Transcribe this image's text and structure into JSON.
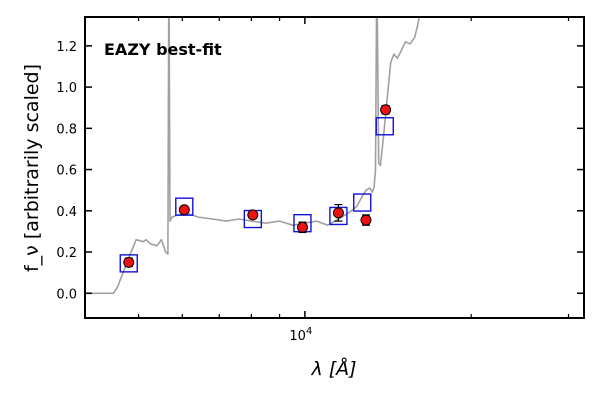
{
  "chart_data": {
    "type": "scatter",
    "annotation": "EAZY best-fit",
    "xlabel": "λ [Å]",
    "ylabel": "f_ν [arbitrarily scaled]",
    "x_scale": "log",
    "xlim": [
      4000,
      32000
    ],
    "ylim": [
      -0.12,
      1.34
    ],
    "y_ticks": [
      0.0,
      0.2,
      0.4,
      0.6,
      0.8,
      1.0,
      1.2
    ],
    "y_tick_labels": [
      "0.0",
      "0.2",
      "0.4",
      "0.6",
      "0.8",
      "1.0",
      "1.2"
    ],
    "x_major_ticks": [
      10000
    ],
    "x_tick_labels": [
      "10^4"
    ],
    "x_minor_ticks": [
      5000,
      6000,
      7000,
      8000,
      9000,
      20000,
      30000
    ],
    "grid": false,
    "colors": {
      "model": "#a0a0a0",
      "observed_fill": "#ee1111",
      "observed_edge": "#000000",
      "model_photometry": "#1111dd",
      "annotation": "#ee1111"
    },
    "series": [
      {
        "kind": "observed",
        "x": [
          4800,
          6050,
          8050,
          9900,
          11500,
          12900,
          14000
        ],
        "y": [
          0.15,
          0.405,
          0.38,
          0.32,
          0.39,
          0.355,
          0.89
        ],
        "yerr": [
          0.02,
          0.015,
          0.015,
          0.025,
          0.04,
          0.025,
          0.02
        ]
      },
      {
        "kind": "model_photometry",
        "x": [
          4800,
          6050,
          8050,
          9900,
          11500,
          12700,
          13950
        ],
        "y": [
          0.145,
          0.42,
          0.36,
          0.34,
          0.375,
          0.44,
          0.81
        ]
      },
      {
        "kind": "model_sed",
        "x": [
          4000,
          4500,
          4580,
          4750,
          4950,
          5100,
          5160,
          5250,
          5400,
          5500,
          5600,
          5650,
          5670,
          5680,
          5700,
          5750,
          5900,
          6100,
          6400,
          6800,
          7200,
          7600,
          8000,
          8500,
          9000,
          9500,
          10000,
          10500,
          11000,
          11500,
          12000,
          12400,
          12700,
          12900,
          13100,
          13250,
          13350,
          13420,
          13480,
          13520,
          13600,
          13700,
          13800,
          13900,
          14100,
          14300,
          14500,
          14700,
          14900,
          15200,
          15500,
          15800,
          16000,
          16100
        ],
        "y": [
          0.0,
          0.0,
          0.03,
          0.14,
          0.26,
          0.25,
          0.26,
          0.24,
          0.23,
          0.26,
          0.2,
          0.19,
          1.34,
          1.34,
          0.35,
          0.37,
          0.38,
          0.39,
          0.37,
          0.36,
          0.35,
          0.36,
          0.35,
          0.34,
          0.35,
          0.33,
          0.34,
          0.35,
          0.33,
          0.36,
          0.39,
          0.42,
          0.47,
          0.5,
          0.51,
          0.49,
          0.52,
          0.6,
          1.34,
          1.34,
          0.63,
          0.62,
          0.7,
          0.78,
          0.95,
          1.12,
          1.16,
          1.14,
          1.17,
          1.22,
          1.21,
          1.24,
          1.3,
          1.34
        ]
      }
    ]
  }
}
